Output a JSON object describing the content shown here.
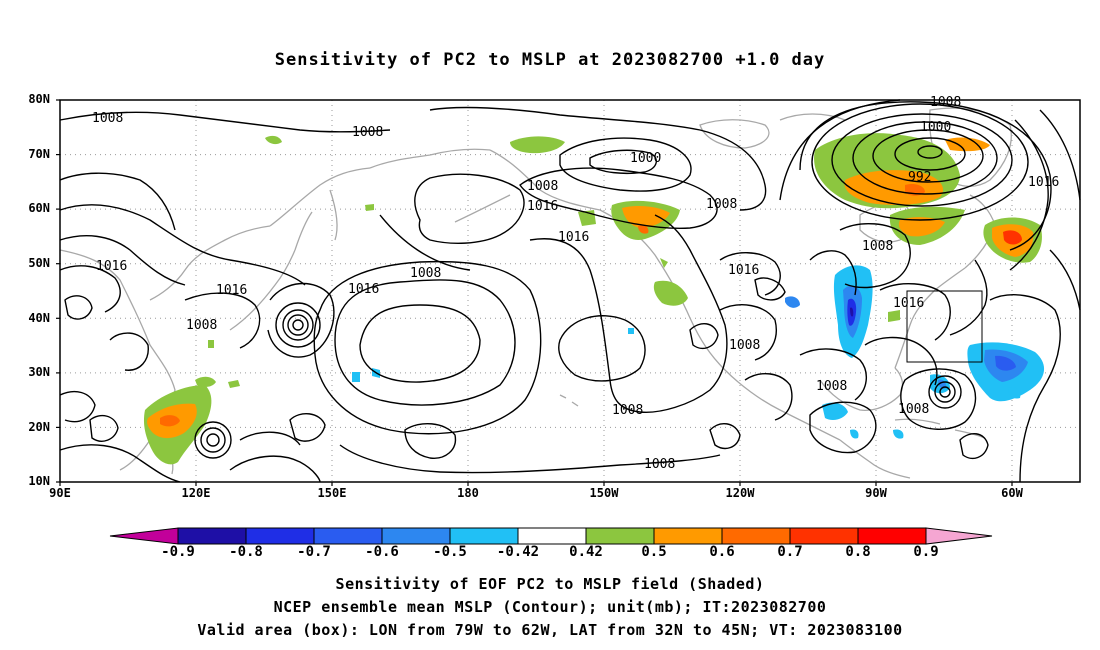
{
  "title": "Sensitivity of PC2 to MSLP at 2023082700 +1.0 day",
  "latitude_labels": [
    "80N",
    "70N",
    "60N",
    "50N",
    "40N",
    "30N",
    "20N",
    "10N"
  ],
  "longitude_labels": [
    "90E",
    "120E",
    "150E",
    "180",
    "150W",
    "120W",
    "90W",
    "60W"
  ],
  "colorbar": {
    "tick_labels": [
      "-0.9",
      "-0.8",
      "-0.7",
      "-0.6",
      "-0.5",
      "-0.42",
      "0.42",
      "0.5",
      "0.6",
      "0.7",
      "0.8",
      "0.9"
    ],
    "colors": [
      "#c2009a",
      "#1e0fa6",
      "#1f2ee6",
      "#2a5cf0",
      "#2d87f0",
      "#21c0f5",
      "#ffffff",
      "#8cc63f",
      "#ff9a00",
      "#ff6a00",
      "#ff3200",
      "#ff0000",
      "#f5a6d2"
    ]
  },
  "contour_labels": [
    "1008",
    "1008",
    "1008",
    "1000",
    "1000",
    "992",
    "1016",
    "1008",
    "1016",
    "1016",
    "1008",
    "1016",
    "1016",
    "1008",
    "1016",
    "1008",
    "1016",
    "1008",
    "1016",
    "1008",
    "1008",
    "1008",
    "1008",
    "1008",
    "1008",
    "1016"
  ],
  "valid_area_box": {
    "lon_west": "79W",
    "lon_east": "62W",
    "lat_south": "32N",
    "lat_north": "45N"
  },
  "captions": {
    "line1": "Sensitivity of EOF PC2 to MSLP field (Shaded)",
    "line2": "NCEP ensemble mean MSLP (Contour); unit(mb); IT:2023082700",
    "line3": "Valid area (box): LON from 79W to 62W, LAT from 32N to 45N; VT: 2023083100"
  }
}
